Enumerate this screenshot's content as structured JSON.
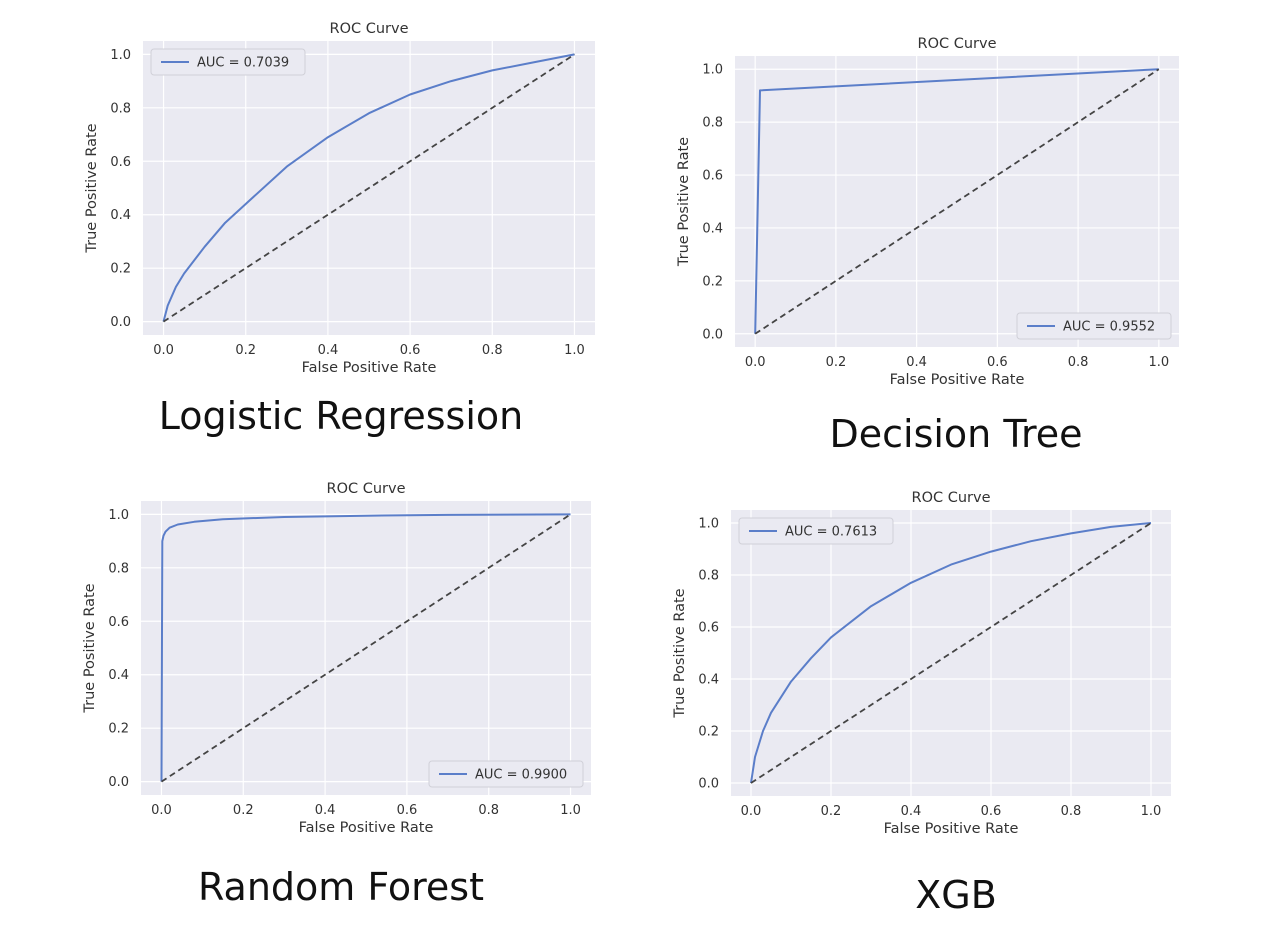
{
  "chart_data": [
    {
      "type": "line",
      "title": "ROC Curve",
      "xlabel": "False Positive Rate",
      "ylabel": "True Positive Rate",
      "xlim": [
        0,
        1
      ],
      "ylim": [
        0,
        1
      ],
      "xticks": [
        "0.0",
        "0.2",
        "0.4",
        "0.6",
        "0.8",
        "1.0"
      ],
      "yticks": [
        "0.0",
        "0.2",
        "0.4",
        "0.6",
        "0.8",
        "1.0"
      ],
      "grid": true,
      "legend_position": "top-left",
      "series": [
        {
          "name": "AUC = 0.7039",
          "color": "#5b7ec9",
          "x": [
            0,
            0.01,
            0.03,
            0.05,
            0.1,
            0.15,
            0.2,
            0.3,
            0.4,
            0.5,
            0.6,
            0.7,
            0.8,
            0.9,
            1.0
          ],
          "y": [
            0,
            0.06,
            0.13,
            0.18,
            0.28,
            0.37,
            0.44,
            0.58,
            0.69,
            0.78,
            0.85,
            0.9,
            0.94,
            0.97,
            1.0
          ]
        },
        {
          "color": "#444444",
          "dashed": true,
          "x": [
            0,
            1
          ],
          "y": [
            0,
            1
          ]
        }
      ]
    },
    {
      "type": "line",
      "title": "ROC Curve",
      "xlabel": "False Positive Rate",
      "ylabel": "True Positive Rate",
      "xlim": [
        0,
        1
      ],
      "ylim": [
        0,
        1
      ],
      "xticks": [
        "0.0",
        "0.2",
        "0.4",
        "0.6",
        "0.8",
        "1.0"
      ],
      "yticks": [
        "0.0",
        "0.2",
        "0.4",
        "0.6",
        "0.8",
        "1.0"
      ],
      "grid": true,
      "legend_position": "bottom-right",
      "series": [
        {
          "name": "AUC = 0.9552",
          "color": "#5b7ec9",
          "x": [
            0,
            0.012,
            1.0
          ],
          "y": [
            0,
            0.92,
            1.0
          ]
        },
        {
          "color": "#444444",
          "dashed": true,
          "x": [
            0,
            1
          ],
          "y": [
            0,
            1
          ]
        }
      ]
    },
    {
      "type": "line",
      "title": "ROC Curve",
      "xlabel": "False Positive Rate",
      "ylabel": "True Positive Rate",
      "xlim": [
        0,
        1
      ],
      "ylim": [
        0,
        1
      ],
      "xticks": [
        "0.0",
        "0.2",
        "0.4",
        "0.6",
        "0.8",
        "1.0"
      ],
      "yticks": [
        "0.0",
        "0.2",
        "0.4",
        "0.6",
        "0.8",
        "1.0"
      ],
      "grid": true,
      "legend_position": "bottom-right",
      "series": [
        {
          "name": "AUC = 0.9900",
          "color": "#5b7ec9",
          "x": [
            0,
            0.002,
            0.005,
            0.01,
            0.02,
            0.04,
            0.08,
            0.15,
            0.3,
            0.5,
            0.7,
            1.0
          ],
          "y": [
            0,
            0.9,
            0.92,
            0.935,
            0.95,
            0.962,
            0.972,
            0.982,
            0.99,
            0.995,
            0.998,
            1.0
          ]
        },
        {
          "color": "#444444",
          "dashed": true,
          "x": [
            0,
            1
          ],
          "y": [
            0,
            1
          ]
        }
      ]
    },
    {
      "type": "line",
      "title": "ROC Curve",
      "xlabel": "False Positive Rate",
      "ylabel": "True Positive Rate",
      "xlim": [
        0,
        1
      ],
      "ylim": [
        0,
        1
      ],
      "xticks": [
        "0.0",
        "0.2",
        "0.4",
        "0.6",
        "0.8",
        "1.0"
      ],
      "yticks": [
        "0.0",
        "0.2",
        "0.4",
        "0.6",
        "0.8",
        "1.0"
      ],
      "grid": true,
      "legend_position": "top-left",
      "series": [
        {
          "name": "AUC = 0.7613",
          "color": "#5b7ec9",
          "x": [
            0,
            0.01,
            0.03,
            0.05,
            0.1,
            0.15,
            0.2,
            0.3,
            0.4,
            0.5,
            0.6,
            0.7,
            0.8,
            0.9,
            1.0
          ],
          "y": [
            0,
            0.1,
            0.2,
            0.27,
            0.39,
            0.48,
            0.56,
            0.68,
            0.77,
            0.84,
            0.89,
            0.93,
            0.96,
            0.985,
            1.0
          ]
        },
        {
          "color": "#444444",
          "dashed": true,
          "x": [
            0,
            1
          ],
          "y": [
            0,
            1
          ]
        }
      ]
    }
  ],
  "captions": [
    "Logistic Regression",
    "Decision Tree",
    "Random Forest",
    "XGB"
  ],
  "colors": {
    "plot_background": "#eaeaf2",
    "grid": "#ffffff",
    "text": "#333333"
  }
}
